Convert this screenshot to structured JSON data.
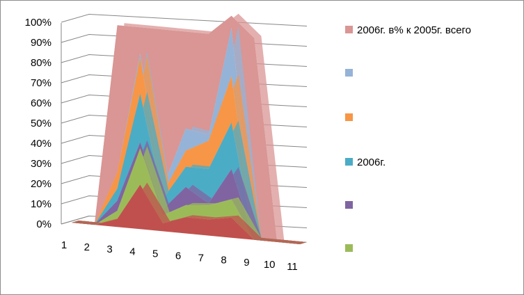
{
  "chart_data": {
    "type": "area",
    "style": "3d-stacked-percent",
    "categories": [
      "1",
      "2",
      "3",
      "4",
      "5",
      "6",
      "7",
      "8",
      "9",
      "10",
      "11"
    ],
    "y_ticks": [
      "0%",
      "10%",
      "20%",
      "30%",
      "40%",
      "50%",
      "60%",
      "70%",
      "80%",
      "90%",
      "100%"
    ],
    "ylim": [
      0,
      100
    ],
    "grid": true,
    "legend_position": "right",
    "series": [
      {
        "color": "#c0504d",
        "values": [
          0,
          0,
          4,
          22,
          4,
          8,
          8,
          10,
          0,
          0,
          0
        ]
      },
      {
        "color": "#9bbb59",
        "values": [
          0,
          0,
          4,
          18,
          4,
          6,
          7,
          9,
          0,
          0,
          0
        ]
      },
      {
        "color": "#8064a2",
        "values": [
          0,
          0,
          5,
          3,
          3,
          9,
          1,
          15,
          0,
          0,
          0
        ]
      },
      {
        "name": "2006г.",
        "color": "#4bacc6",
        "values": [
          0,
          0,
          6,
          24,
          5,
          10,
          17,
          23,
          0,
          0,
          0
        ]
      },
      {
        "color": "#f79646",
        "values": [
          0,
          0,
          8,
          18,
          3,
          8,
          14,
          23,
          0,
          0,
          0
        ]
      },
      {
        "color": "#95b3d7",
        "values": [
          0,
          0,
          0,
          2,
          3,
          11,
          3,
          24,
          0,
          0,
          0
        ]
      },
      {
        "name": "2006г. в% к 2005г. всего",
        "color": "#d99694",
        "values": [
          0,
          0,
          73,
          13,
          78,
          48,
          50,
          6,
          100,
          0,
          0
        ]
      }
    ]
  },
  "legend": {
    "entries": [
      {
        "label": "2006г. в% к 2005г. всего",
        "color": "#d99694"
      },
      {
        "label": "",
        "color": "#95b3d7"
      },
      {
        "label": "",
        "color": "#f79646"
      },
      {
        "label": "2006г.",
        "color": "#4bacc6"
      },
      {
        "label": "",
        "color": "#8064a2"
      },
      {
        "label": "",
        "color": "#9bbb59"
      }
    ]
  }
}
